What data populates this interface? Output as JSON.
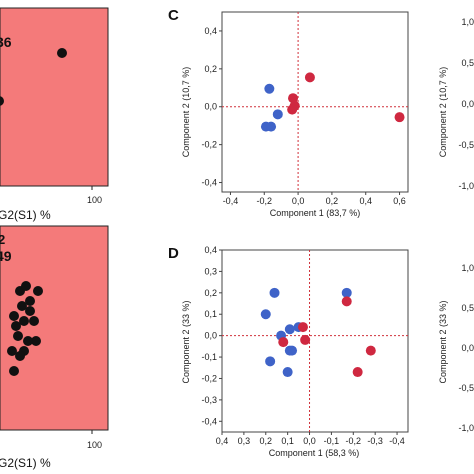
{
  "chart_data": [
    {
      "panel": "left-top",
      "type": "scatter",
      "annotation": "36",
      "xlabel": "G2(S1) %",
      "x_tick_labels": [
        "100"
      ],
      "background": "#f47a7a",
      "point_color": "#111111",
      "points_count_visible": 2
    },
    {
      "panel": "left-bottom",
      "type": "scatter",
      "annotation": "49",
      "annotation_partial": "2",
      "xlabel": "G2(S1) %",
      "x_tick_labels": [
        "100"
      ],
      "background": "#f47a7a",
      "point_color": "#111111"
    },
    {
      "panel": "C",
      "type": "scatter",
      "label": "C",
      "xlabel": "Component 1  (83,7 %)",
      "ylabel": "Component 2  (10,7 %)",
      "xlim": [
        -0.45,
        0.65
      ],
      "ylim": [
        -0.45,
        0.5
      ],
      "x_ticks": [
        -0.4,
        -0.2,
        0.0,
        0.2,
        0.4,
        0.6
      ],
      "x_tick_labels": [
        "-0,4",
        "-0,2",
        "0,0",
        "0,2",
        "0,4",
        "0,6"
      ],
      "y_ticks": [
        -0.4,
        -0.2,
        0.0,
        0.2,
        0.4
      ],
      "y_tick_labels": [
        "-0,4",
        "-0,2",
        "0,0",
        "0,2",
        "0,4"
      ],
      "reference_lines": {
        "x": 0,
        "y": 0,
        "color": "#d0303a",
        "style": "dashed"
      },
      "series": [
        {
          "color": "#3f63c8",
          "points": [
            [
              -0.17,
              0.095
            ],
            [
              -0.19,
              -0.105
            ],
            [
              -0.16,
              -0.105
            ],
            [
              -0.12,
              -0.04
            ]
          ]
        },
        {
          "color": "#cf2840",
          "points": [
            [
              0.07,
              0.155
            ],
            [
              0.6,
              -0.055
            ],
            [
              -0.03,
              0.045
            ],
            [
              -0.02,
              0.005
            ],
            [
              -0.035,
              -0.015
            ]
          ]
        }
      ]
    },
    {
      "panel": "D",
      "type": "scatter",
      "label": "D",
      "xlabel": "Component 1  (58,3 %)",
      "ylabel": "Component 2  (33 %)",
      "x_reversed": true,
      "xlim": [
        0.4,
        -0.45
      ],
      "ylim": [
        -0.45,
        0.4
      ],
      "x_ticks": [
        0.4,
        0.3,
        0.2,
        0.1,
        0.0,
        -0.1,
        -0.2,
        -0.3,
        -0.4
      ],
      "x_tick_labels": [
        "0,4",
        "0,3",
        "0,2",
        "0,1",
        "0,0",
        "-0,1",
        "-0,2",
        "-0,3",
        "-0,4"
      ],
      "y_ticks": [
        -0.4,
        -0.3,
        -0.2,
        -0.1,
        0.0,
        0.1,
        0.2,
        0.3,
        0.4
      ],
      "y_tick_labels": [
        "-0,4",
        "-0,3",
        "-0,2",
        "-0,1",
        "0,0",
        "0,1",
        "0,2",
        "0,3",
        "0,4"
      ],
      "reference_lines": {
        "x": 0,
        "y": 0,
        "color": "#d0303a",
        "style": "dashed"
      },
      "series": [
        {
          "color": "#3f63c8",
          "points": [
            [
              0.2,
              0.1
            ],
            [
              0.16,
              0.2
            ],
            [
              0.09,
              0.03
            ],
            [
              0.05,
              0.04
            ],
            [
              0.13,
              0.0
            ],
            [
              0.18,
              -0.12
            ],
            [
              0.09,
              -0.07
            ],
            [
              0.08,
              -0.07
            ],
            [
              0.1,
              -0.17
            ],
            [
              -0.17,
              0.2
            ]
          ]
        },
        {
          "color": "#cf2840",
          "points": [
            [
              -0.17,
              0.16
            ],
            [
              0.03,
              0.04
            ],
            [
              0.02,
              -0.02
            ],
            [
              0.12,
              -0.03
            ],
            [
              -0.28,
              -0.07
            ],
            [
              -0.22,
              -0.17
            ]
          ]
        }
      ]
    },
    {
      "panel": "right-top-partial",
      "type": "scatter",
      "ylabel": "Component 2  (10,7 %)",
      "y_tick_labels": [
        "1,0",
        "0,5",
        "0,0",
        "-0,5",
        "-1,0"
      ]
    },
    {
      "panel": "right-bottom-partial",
      "type": "scatter",
      "ylabel": "Component 2  (33 %)",
      "y_tick_labels": [
        "1,0",
        "0,5",
        "0,0",
        "-0,5",
        "-1,0"
      ]
    }
  ]
}
